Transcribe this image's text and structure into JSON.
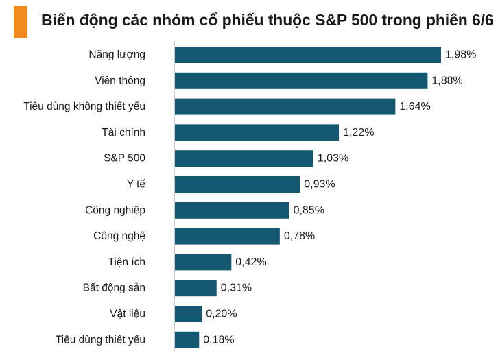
{
  "chart_data": {
    "type": "bar",
    "orientation": "horizontal",
    "title": "Biến động các nhóm cổ phiếu thuộc S&P 500 trong phiên 6/6",
    "categories": [
      "Năng lượng",
      "Viễn thông",
      "Tiêu dùng không thiết yếu",
      "Tài chính",
      "S&P 500",
      "Y tế",
      "Công nghiệp",
      "Công nghệ",
      "Tiện ích",
      "Bất động sản",
      "Vật liệu",
      "Tiêu dùng thiết yếu"
    ],
    "values": [
      1.98,
      1.88,
      1.64,
      1.22,
      1.03,
      0.93,
      0.85,
      0.78,
      0.42,
      0.31,
      0.2,
      0.18
    ],
    "value_labels": [
      "1,98%",
      "1,88%",
      "1,64%",
      "1,22%",
      "1,03%",
      "0,93%",
      "0,85%",
      "0,78%",
      "0,42%",
      "0,31%",
      "0,20%",
      "0,18%"
    ],
    "xlim": [
      0,
      1.98
    ],
    "grid": false,
    "legend": "none"
  },
  "colors": {
    "bar": "#155872",
    "accent": "#f28a1e",
    "axis": "#999999"
  }
}
